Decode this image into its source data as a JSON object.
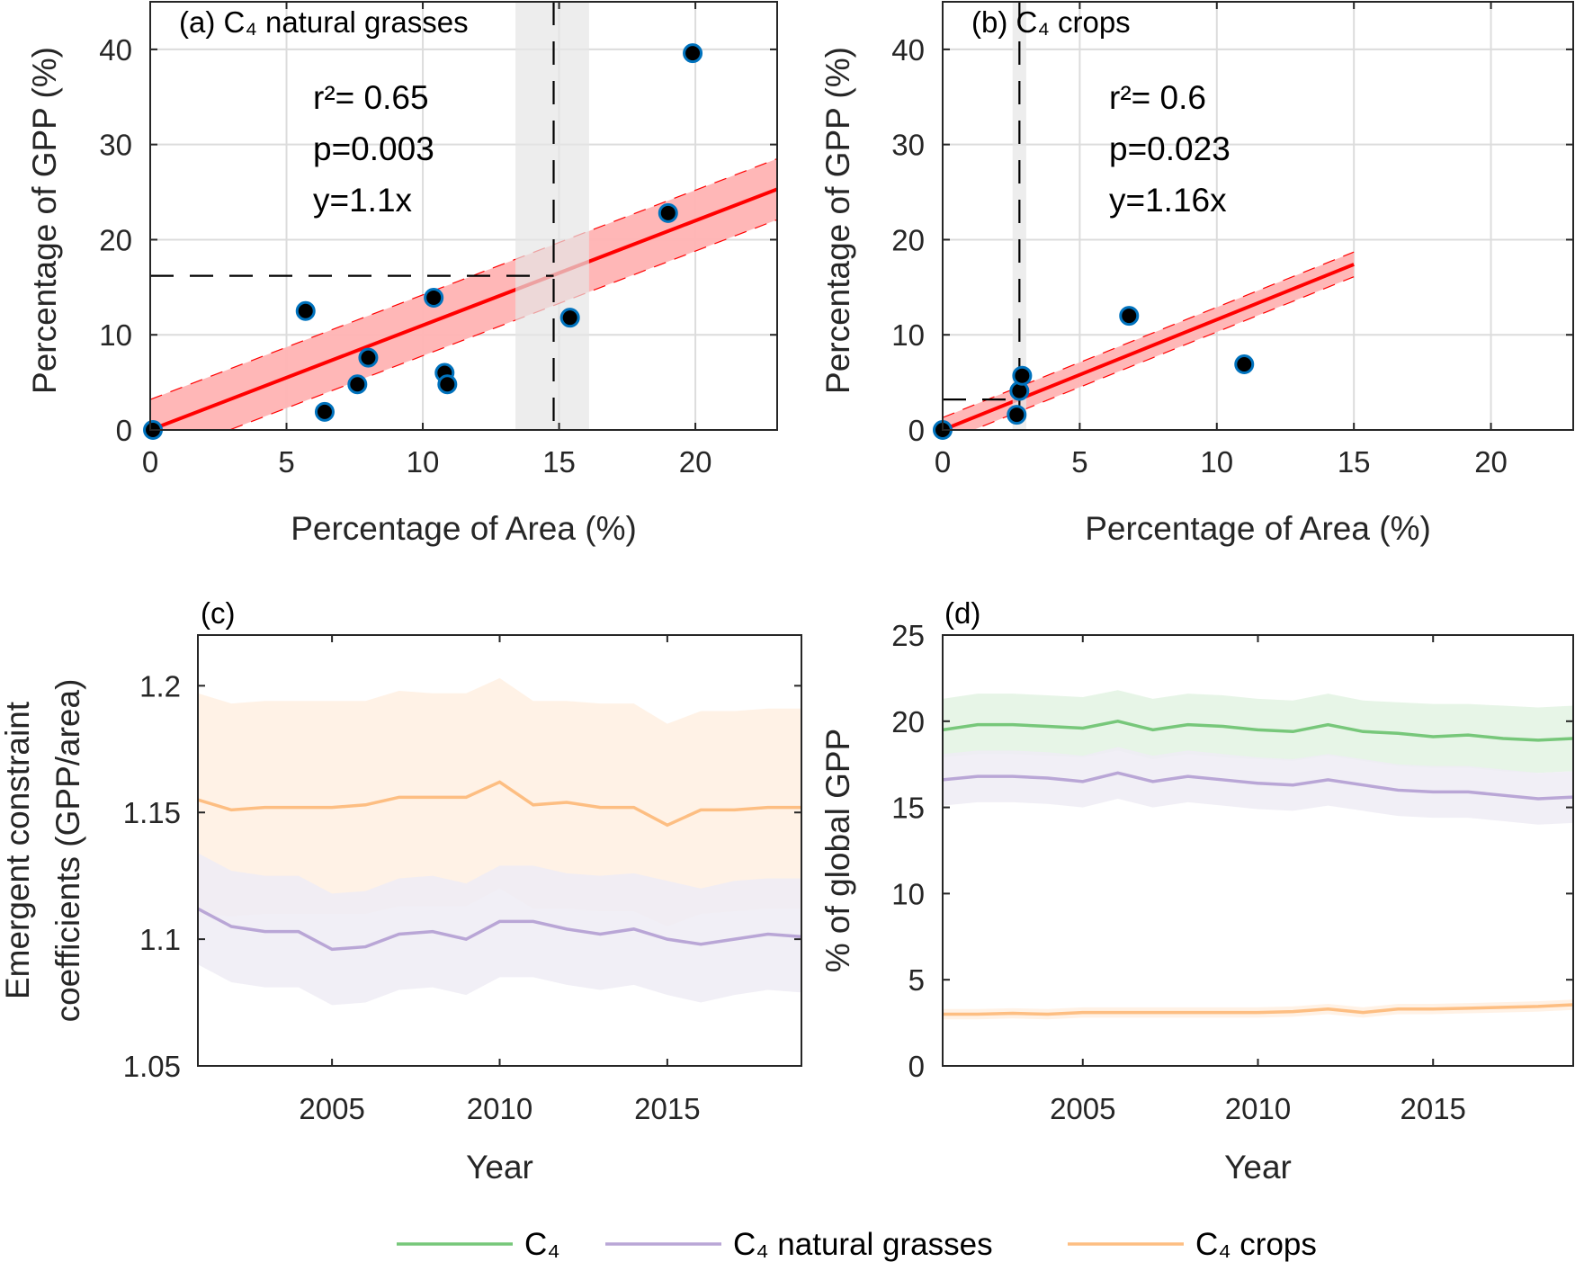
{
  "colors": {
    "c4": "#77c77a",
    "c4_band": "#e3f3e3",
    "natural": "#b9a6d6",
    "natural_band": "#efecf5",
    "crops": "#fdbe82",
    "crops_band": "#fff0e2",
    "fit": "#ff0000",
    "fit_band": "#ffb3b3",
    "marker_edge": "#0072bd",
    "marker_fill": "#000000",
    "reference_shade": "#e6e6e6"
  },
  "legend": {
    "position": "bottom-center",
    "items": [
      {
        "key": "c4",
        "label": "C₄"
      },
      {
        "key": "natural",
        "label": "C₄ natural grasses"
      },
      {
        "key": "crops",
        "label": "C₄ crops"
      }
    ]
  },
  "chart_data": [
    {
      "panel": "a",
      "type": "scatter",
      "title": "(a) C₄ natural grasses",
      "xlabel": "Percentage of Area (%)",
      "ylabel": "Percentage of GPP (%)",
      "xlim": [
        0,
        23
      ],
      "ylim": [
        0,
        45
      ],
      "xticks": [
        0,
        5,
        10,
        15,
        20
      ],
      "yticks": [
        0,
        10,
        20,
        30,
        40
      ],
      "grid": true,
      "points": {
        "x": [
          0.1,
          5.7,
          6.4,
          7.6,
          8.0,
          10.4,
          10.8,
          10.9,
          15.4,
          19.0,
          19.9
        ],
        "y": [
          0.0,
          12.5,
          1.9,
          4.8,
          7.6,
          13.9,
          6.0,
          4.8,
          11.8,
          22.8,
          39.6
        ]
      },
      "fit": {
        "slope": 1.1,
        "x_range": [
          0,
          23
        ],
        "ci_halfwidth": 3.2
      },
      "reference": {
        "x": 14.8,
        "x_range": [
          13.4,
          16.1
        ],
        "y": 16.2
      },
      "annotations": [
        "r²= 0.65",
        "p=0.003",
        "y=1.1x"
      ]
    },
    {
      "panel": "b",
      "type": "scatter",
      "title": "(b) C₄ crops",
      "xlabel": "Percentage of Area (%)",
      "ylabel": "Percentage of GPP (%)",
      "xlim": [
        0,
        23
      ],
      "ylim": [
        0,
        45
      ],
      "xticks": [
        0,
        5,
        10,
        15,
        20
      ],
      "yticks": [
        0,
        10,
        20,
        30,
        40
      ],
      "grid": true,
      "points": {
        "x": [
          0.0,
          2.7,
          2.8,
          2.9,
          6.8,
          11.0
        ],
        "y": [
          0.0,
          1.6,
          4.1,
          5.7,
          12.0,
          6.9
        ]
      },
      "fit": {
        "slope": 1.16,
        "x_range": [
          0,
          15
        ],
        "ci_halfwidth": 1.3
      },
      "reference": {
        "x": 2.8,
        "x_range": [
          2.55,
          3.05
        ],
        "y": 3.2
      },
      "annotations": [
        "r²= 0.6",
        "p=0.023",
        "y=1.16x"
      ]
    },
    {
      "panel": "c",
      "type": "line",
      "title": "(c)",
      "xlabel": "Year",
      "ylabel": [
        "Emergent constraint",
        "coefficients (GPP/area)"
      ],
      "xlim": [
        2001,
        2019
      ],
      "ylim": [
        1.05,
        1.22
      ],
      "xticks": [
        2005,
        2010,
        2015
      ],
      "yticks": [
        1.05,
        1.1,
        1.15,
        1.2
      ],
      "ytick_labels": [
        "1.05",
        "1.1",
        "1.15",
        "1.2"
      ],
      "grid": false,
      "x": [
        2001,
        2002,
        2003,
        2004,
        2005,
        2006,
        2007,
        2008,
        2009,
        2010,
        2011,
        2012,
        2013,
        2014,
        2015,
        2016,
        2017,
        2018,
        2019
      ],
      "series": [
        {
          "key": "crops",
          "values": [
            1.155,
            1.151,
            1.152,
            1.152,
            1.152,
            1.153,
            1.156,
            1.156,
            1.156,
            1.162,
            1.153,
            1.154,
            1.152,
            1.152,
            1.145,
            1.151,
            1.151,
            1.152,
            1.152
          ],
          "upper": [
            1.197,
            1.193,
            1.194,
            1.194,
            1.194,
            1.194,
            1.198,
            1.197,
            1.197,
            1.203,
            1.194,
            1.194,
            1.193,
            1.193,
            1.185,
            1.19,
            1.19,
            1.191,
            1.191
          ],
          "lower": [
            1.11,
            1.109,
            1.11,
            1.11,
            1.11,
            1.11,
            1.113,
            1.113,
            1.113,
            1.12,
            1.112,
            1.112,
            1.111,
            1.111,
            1.105,
            1.11,
            1.111,
            1.112,
            1.112
          ]
        },
        {
          "key": "natural",
          "values": [
            1.112,
            1.105,
            1.103,
            1.103,
            1.096,
            1.097,
            1.102,
            1.103,
            1.1,
            1.107,
            1.107,
            1.104,
            1.102,
            1.104,
            1.1,
            1.098,
            1.1,
            1.102,
            1.101
          ],
          "upper": [
            1.134,
            1.127,
            1.125,
            1.125,
            1.118,
            1.119,
            1.124,
            1.125,
            1.122,
            1.129,
            1.129,
            1.126,
            1.125,
            1.126,
            1.123,
            1.12,
            1.123,
            1.124,
            1.124
          ],
          "lower": [
            1.09,
            1.083,
            1.081,
            1.081,
            1.074,
            1.075,
            1.08,
            1.081,
            1.078,
            1.085,
            1.085,
            1.082,
            1.08,
            1.082,
            1.078,
            1.075,
            1.078,
            1.08,
            1.079
          ]
        }
      ]
    },
    {
      "panel": "d",
      "type": "line",
      "title": "(d)",
      "xlabel": "Year",
      "ylabel": "% of global GPP",
      "xlim": [
        2001,
        2019
      ],
      "ylim": [
        0,
        25
      ],
      "xticks": [
        2005,
        2010,
        2015
      ],
      "yticks": [
        0,
        5,
        10,
        15,
        20,
        25
      ],
      "grid": false,
      "x": [
        2001,
        2002,
        2003,
        2004,
        2005,
        2006,
        2007,
        2008,
        2009,
        2010,
        2011,
        2012,
        2013,
        2014,
        2015,
        2016,
        2017,
        2018,
        2019
      ],
      "series": [
        {
          "key": "c4",
          "values": [
            19.5,
            19.8,
            19.8,
            19.7,
            19.6,
            20.0,
            19.5,
            19.8,
            19.7,
            19.5,
            19.4,
            19.8,
            19.4,
            19.3,
            19.1,
            19.2,
            19.0,
            18.9,
            19.0
          ],
          "upper": [
            21.3,
            21.6,
            21.6,
            21.5,
            21.4,
            21.8,
            21.3,
            21.6,
            21.5,
            21.3,
            21.2,
            21.6,
            21.2,
            21.1,
            21.0,
            21.0,
            20.9,
            20.8,
            20.9
          ],
          "lower": [
            17.9,
            18.1,
            18.1,
            18.0,
            17.9,
            18.3,
            17.8,
            18.1,
            17.9,
            17.8,
            17.7,
            18.0,
            17.7,
            17.4,
            17.3,
            17.3,
            17.1,
            17.0,
            17.1
          ]
        },
        {
          "key": "natural",
          "values": [
            16.6,
            16.8,
            16.8,
            16.7,
            16.5,
            17.0,
            16.5,
            16.8,
            16.6,
            16.4,
            16.3,
            16.6,
            16.3,
            16.0,
            15.9,
            15.9,
            15.7,
            15.5,
            15.6
          ],
          "upper": [
            18.1,
            18.3,
            18.3,
            18.2,
            18.0,
            18.5,
            18.0,
            18.3,
            18.1,
            17.9,
            17.8,
            18.1,
            17.8,
            17.5,
            17.4,
            17.4,
            17.2,
            17.0,
            17.1
          ],
          "lower": [
            15.1,
            15.3,
            15.3,
            15.2,
            15.0,
            15.5,
            15.0,
            15.3,
            15.1,
            14.9,
            14.8,
            15.1,
            14.8,
            14.5,
            14.4,
            14.4,
            14.2,
            14.0,
            14.1
          ]
        },
        {
          "key": "crops",
          "values": [
            3.0,
            3.0,
            3.05,
            3.0,
            3.1,
            3.1,
            3.1,
            3.1,
            3.1,
            3.1,
            3.15,
            3.3,
            3.1,
            3.3,
            3.3,
            3.35,
            3.4,
            3.45,
            3.55
          ],
          "upper": [
            3.3,
            3.3,
            3.35,
            3.3,
            3.4,
            3.4,
            3.4,
            3.4,
            3.4,
            3.4,
            3.45,
            3.6,
            3.4,
            3.6,
            3.6,
            3.65,
            3.7,
            3.75,
            3.85
          ],
          "lower": [
            2.7,
            2.7,
            2.75,
            2.7,
            2.8,
            2.8,
            2.8,
            2.8,
            2.8,
            2.8,
            2.85,
            3.0,
            2.8,
            3.0,
            3.0,
            3.05,
            3.1,
            3.15,
            3.25
          ]
        }
      ]
    }
  ]
}
